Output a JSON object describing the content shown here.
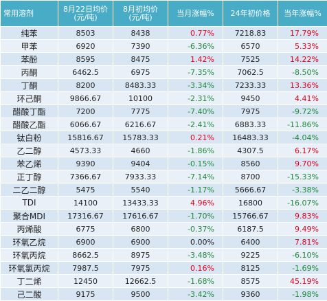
{
  "header": {
    "product": "常用溶剂",
    "avg_line1": "8月22日均价",
    "avg_line2": "(元/吨)",
    "start_line1": "8月初均价",
    "start_line2": "(元/吨)",
    "month_change": "当月涨幅%",
    "year_start_price": "24年初价格",
    "year_change": "当年涨幅%"
  },
  "rows": [
    {
      "name": "纯苯",
      "avg": "8503",
      "start": "8438",
      "mtd": "0.77%",
      "mtd_sign": "pos",
      "ystart": "7218.83",
      "ytd": "17.79%",
      "ytd_sign": "pos"
    },
    {
      "name": "甲苯",
      "avg": "6920",
      "start": "7390",
      "mtd": "-6.36%",
      "mtd_sign": "neg",
      "ystart": "6570",
      "ytd": "5.33%",
      "ytd_sign": "pos"
    },
    {
      "name": "苯酚",
      "avg": "8595",
      "start": "8475",
      "mtd": "1.42%",
      "mtd_sign": "pos",
      "ystart": "7525",
      "ytd": "14.22%",
      "ytd_sign": "pos"
    },
    {
      "name": "丙酮",
      "avg": "6462.5",
      "start": "6975",
      "mtd": "-7.35%",
      "mtd_sign": "neg",
      "ystart": "7062.5",
      "ytd": "-8.50%",
      "ytd_sign": "neg"
    },
    {
      "name": "丁酮",
      "avg": "8200",
      "start": "8483.33",
      "mtd": "-3.34%",
      "mtd_sign": "neg",
      "ystart": "7233.33",
      "ytd": "13.36%",
      "ytd_sign": "pos"
    },
    {
      "name": "环己酮",
      "avg": "9866.67",
      "start": "10100",
      "mtd": "-2.31%",
      "mtd_sign": "neg",
      "ystart": "9450",
      "ytd": "4.41%",
      "ytd_sign": "pos"
    },
    {
      "name": "醋酸丁酯",
      "avg": "7200",
      "start": "7775",
      "mtd": "-7.40%",
      "mtd_sign": "neg",
      "ystart": "7975",
      "ytd": "-9.72%",
      "ytd_sign": "neg"
    },
    {
      "name": "醋酸乙酯",
      "avg": "6066.67",
      "start": "6216.67",
      "mtd": "-2.41%",
      "mtd_sign": "neg",
      "ystart": "6883.33",
      "ytd": "-11.86%",
      "ytd_sign": "neg"
    },
    {
      "name": "钛白粉",
      "avg": "15816.67",
      "start": "15783.33",
      "mtd": "0.21%",
      "mtd_sign": "pos",
      "ystart": "16483.33",
      "ytd": "-4.04%",
      "ytd_sign": "neg"
    },
    {
      "name": "乙二醇",
      "avg": "4573.33",
      "start": "4660",
      "mtd": "-1.86%",
      "mtd_sign": "neg",
      "ystart": "4307.5",
      "ytd": "6.17%",
      "ytd_sign": "pos"
    },
    {
      "name": "苯乙烯",
      "avg": "9390",
      "start": "9404",
      "mtd": "-0.15%",
      "mtd_sign": "neg",
      "ystart": "8560",
      "ytd": "9.70%",
      "ytd_sign": "pos"
    },
    {
      "name": "正丁醇",
      "avg": "7366.67",
      "start": "7933.33",
      "mtd": "-7.14%",
      "mtd_sign": "neg",
      "ystart": "8700",
      "ytd": "-15.33%",
      "ytd_sign": "neg"
    },
    {
      "name": "二乙二醇",
      "avg": "5475",
      "start": "5540",
      "mtd": "-1.17%",
      "mtd_sign": "neg",
      "ystart": "5666.67",
      "ytd": "-3.38%",
      "ytd_sign": "neg"
    },
    {
      "name": "TDI",
      "avg": "14100",
      "start": "13433.33",
      "mtd": "4.96%",
      "mtd_sign": "pos",
      "ystart": "16800",
      "ytd": "-16.07%",
      "ytd_sign": "neg"
    },
    {
      "name": "聚合MDI",
      "avg": "17316.67",
      "start": "17616.67",
      "mtd": "-1.70%",
      "mtd_sign": "neg",
      "ystart": "15766.67",
      "ytd": "9.83%",
      "ytd_sign": "pos"
    },
    {
      "name": "丙烯酸",
      "avg": "6775",
      "start": "6800",
      "mtd": "-0.37%",
      "mtd_sign": "neg",
      "ystart": "6187.5",
      "ytd": "9.49%",
      "ytd_sign": "pos"
    },
    {
      "name": "环氧乙烷",
      "avg": "6900",
      "start": "6900",
      "mtd": "0.00%",
      "mtd_sign": "zero",
      "ystart": "6400",
      "ytd": "7.81%",
      "ytd_sign": "pos"
    },
    {
      "name": "环氧丙烷",
      "avg": "8662.5",
      "start": "8975",
      "mtd": "-3.48%",
      "mtd_sign": "neg",
      "ystart": "9225",
      "ytd": "-6.10%",
      "ytd_sign": "neg"
    },
    {
      "name": "环氧氯丙烷",
      "avg": "7987.5",
      "start": "7975",
      "mtd": "0.16%",
      "mtd_sign": "pos",
      "ystart": "8125",
      "ytd": "-1.69%",
      "ytd_sign": "neg"
    },
    {
      "name": "丁二烯",
      "avg": "12450",
      "start": "12662.5",
      "mtd": "-1.68%",
      "mtd_sign": "neg",
      "ystart": "8575",
      "ytd": "45.19%",
      "ytd_sign": "pos"
    },
    {
      "name": "己二酸",
      "avg": "9175",
      "start": "9500",
      "mtd": "-3.42%",
      "mtd_sign": "neg",
      "ystart": "9360",
      "ytd": "-1.98%",
      "ytd_sign": "neg"
    }
  ],
  "colors": {
    "header_bg": "#49acc6",
    "row_odd": "#d8e5f3",
    "row_even": "#e9f0f8",
    "positive": "#e3001b",
    "negative": "#1f8a3a"
  }
}
